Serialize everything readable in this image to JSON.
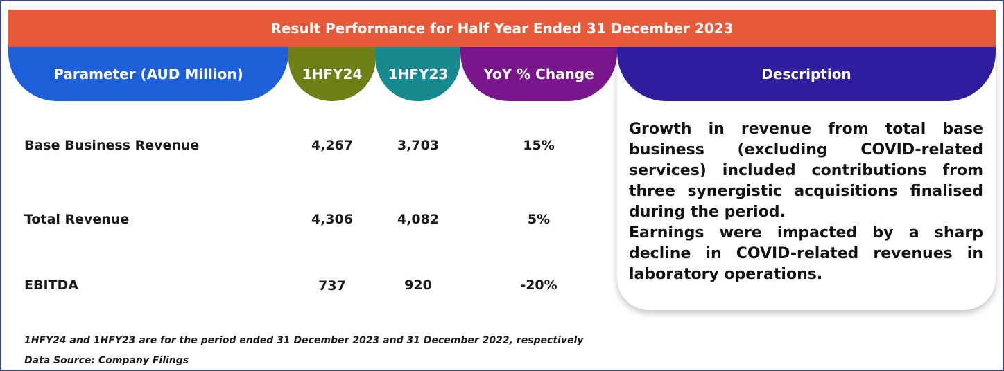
{
  "title": "Result Performance for Half Year Ended 31 December 2023",
  "headers": {
    "parameter": "Parameter (AUD Million)",
    "h1fy24": "1HFY24",
    "h1fy23": "1HFY23",
    "yoy": "YoY % Change",
    "description": "Description"
  },
  "colors": {
    "title_bar": "#e8593a",
    "parameter": "#1c5fd8",
    "h1fy24": "#6e7f16",
    "h1fy23": "#178a90",
    "yoy": "#7a168c",
    "description": "#2e1d9c"
  },
  "rows": [
    {
      "parameter": "Base Business Revenue",
      "h1fy24": "4,267",
      "h1fy23": "3,703",
      "yoy": "15%"
    },
    {
      "parameter": "Total Revenue",
      "h1fy24": "4,306",
      "h1fy23": "4,082",
      "yoy": "5%"
    },
    {
      "parameter": "EBITDA",
      "h1fy24": "737",
      "h1fy23": "920",
      "yoy": "-20%"
    }
  ],
  "description": {
    "paragraph_1": "Growth in revenue from total base business (excluding COVID-related services) included contributions from three synergistic acquisitions finalised during the period.",
    "paragraph_2": "Earnings were impacted by a sharp decline in COVID-related revenues in laboratory operations."
  },
  "footnotes": {
    "period_note": "1HFY24 and 1HFY23 are for the period ended 31 December  2023 and 31 December 2022, respectively",
    "source": "Data Source: Company Filings"
  }
}
